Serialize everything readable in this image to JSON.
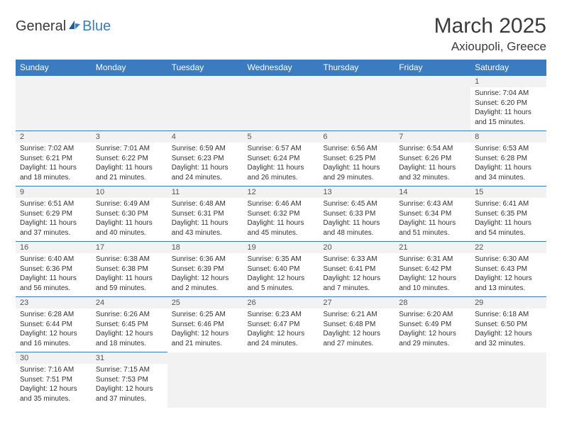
{
  "brand": {
    "part1": "General",
    "part2": "Blue"
  },
  "title": "March 2025",
  "location": "Axioupoli, Greece",
  "colors": {
    "header_bg": "#3b7bbf",
    "header_fg": "#ffffff",
    "daynum_bg": "#f2f2f2",
    "border": "#3b7bbf",
    "text": "#333333"
  },
  "weekdays": [
    "Sunday",
    "Monday",
    "Tuesday",
    "Wednesday",
    "Thursday",
    "Friday",
    "Saturday"
  ],
  "weeks": [
    [
      null,
      null,
      null,
      null,
      null,
      null,
      {
        "n": "1",
        "sr": "Sunrise: 7:04 AM",
        "ss": "Sunset: 6:20 PM",
        "dl": "Daylight: 11 hours and 15 minutes."
      }
    ],
    [
      {
        "n": "2",
        "sr": "Sunrise: 7:02 AM",
        "ss": "Sunset: 6:21 PM",
        "dl": "Daylight: 11 hours and 18 minutes."
      },
      {
        "n": "3",
        "sr": "Sunrise: 7:01 AM",
        "ss": "Sunset: 6:22 PM",
        "dl": "Daylight: 11 hours and 21 minutes."
      },
      {
        "n": "4",
        "sr": "Sunrise: 6:59 AM",
        "ss": "Sunset: 6:23 PM",
        "dl": "Daylight: 11 hours and 24 minutes."
      },
      {
        "n": "5",
        "sr": "Sunrise: 6:57 AM",
        "ss": "Sunset: 6:24 PM",
        "dl": "Daylight: 11 hours and 26 minutes."
      },
      {
        "n": "6",
        "sr": "Sunrise: 6:56 AM",
        "ss": "Sunset: 6:25 PM",
        "dl": "Daylight: 11 hours and 29 minutes."
      },
      {
        "n": "7",
        "sr": "Sunrise: 6:54 AM",
        "ss": "Sunset: 6:26 PM",
        "dl": "Daylight: 11 hours and 32 minutes."
      },
      {
        "n": "8",
        "sr": "Sunrise: 6:53 AM",
        "ss": "Sunset: 6:28 PM",
        "dl": "Daylight: 11 hours and 34 minutes."
      }
    ],
    [
      {
        "n": "9",
        "sr": "Sunrise: 6:51 AM",
        "ss": "Sunset: 6:29 PM",
        "dl": "Daylight: 11 hours and 37 minutes."
      },
      {
        "n": "10",
        "sr": "Sunrise: 6:49 AM",
        "ss": "Sunset: 6:30 PM",
        "dl": "Daylight: 11 hours and 40 minutes."
      },
      {
        "n": "11",
        "sr": "Sunrise: 6:48 AM",
        "ss": "Sunset: 6:31 PM",
        "dl": "Daylight: 11 hours and 43 minutes."
      },
      {
        "n": "12",
        "sr": "Sunrise: 6:46 AM",
        "ss": "Sunset: 6:32 PM",
        "dl": "Daylight: 11 hours and 45 minutes."
      },
      {
        "n": "13",
        "sr": "Sunrise: 6:45 AM",
        "ss": "Sunset: 6:33 PM",
        "dl": "Daylight: 11 hours and 48 minutes."
      },
      {
        "n": "14",
        "sr": "Sunrise: 6:43 AM",
        "ss": "Sunset: 6:34 PM",
        "dl": "Daylight: 11 hours and 51 minutes."
      },
      {
        "n": "15",
        "sr": "Sunrise: 6:41 AM",
        "ss": "Sunset: 6:35 PM",
        "dl": "Daylight: 11 hours and 54 minutes."
      }
    ],
    [
      {
        "n": "16",
        "sr": "Sunrise: 6:40 AM",
        "ss": "Sunset: 6:36 PM",
        "dl": "Daylight: 11 hours and 56 minutes."
      },
      {
        "n": "17",
        "sr": "Sunrise: 6:38 AM",
        "ss": "Sunset: 6:38 PM",
        "dl": "Daylight: 11 hours and 59 minutes."
      },
      {
        "n": "18",
        "sr": "Sunrise: 6:36 AM",
        "ss": "Sunset: 6:39 PM",
        "dl": "Daylight: 12 hours and 2 minutes."
      },
      {
        "n": "19",
        "sr": "Sunrise: 6:35 AM",
        "ss": "Sunset: 6:40 PM",
        "dl": "Daylight: 12 hours and 5 minutes."
      },
      {
        "n": "20",
        "sr": "Sunrise: 6:33 AM",
        "ss": "Sunset: 6:41 PM",
        "dl": "Daylight: 12 hours and 7 minutes."
      },
      {
        "n": "21",
        "sr": "Sunrise: 6:31 AM",
        "ss": "Sunset: 6:42 PM",
        "dl": "Daylight: 12 hours and 10 minutes."
      },
      {
        "n": "22",
        "sr": "Sunrise: 6:30 AM",
        "ss": "Sunset: 6:43 PM",
        "dl": "Daylight: 12 hours and 13 minutes."
      }
    ],
    [
      {
        "n": "23",
        "sr": "Sunrise: 6:28 AM",
        "ss": "Sunset: 6:44 PM",
        "dl": "Daylight: 12 hours and 16 minutes."
      },
      {
        "n": "24",
        "sr": "Sunrise: 6:26 AM",
        "ss": "Sunset: 6:45 PM",
        "dl": "Daylight: 12 hours and 18 minutes."
      },
      {
        "n": "25",
        "sr": "Sunrise: 6:25 AM",
        "ss": "Sunset: 6:46 PM",
        "dl": "Daylight: 12 hours and 21 minutes."
      },
      {
        "n": "26",
        "sr": "Sunrise: 6:23 AM",
        "ss": "Sunset: 6:47 PM",
        "dl": "Daylight: 12 hours and 24 minutes."
      },
      {
        "n": "27",
        "sr": "Sunrise: 6:21 AM",
        "ss": "Sunset: 6:48 PM",
        "dl": "Daylight: 12 hours and 27 minutes."
      },
      {
        "n": "28",
        "sr": "Sunrise: 6:20 AM",
        "ss": "Sunset: 6:49 PM",
        "dl": "Daylight: 12 hours and 29 minutes."
      },
      {
        "n": "29",
        "sr": "Sunrise: 6:18 AM",
        "ss": "Sunset: 6:50 PM",
        "dl": "Daylight: 12 hours and 32 minutes."
      }
    ],
    [
      {
        "n": "30",
        "sr": "Sunrise: 7:16 AM",
        "ss": "Sunset: 7:51 PM",
        "dl": "Daylight: 12 hours and 35 minutes."
      },
      {
        "n": "31",
        "sr": "Sunrise: 7:15 AM",
        "ss": "Sunset: 7:53 PM",
        "dl": "Daylight: 12 hours and 37 minutes."
      },
      null,
      null,
      null,
      null,
      null
    ]
  ]
}
